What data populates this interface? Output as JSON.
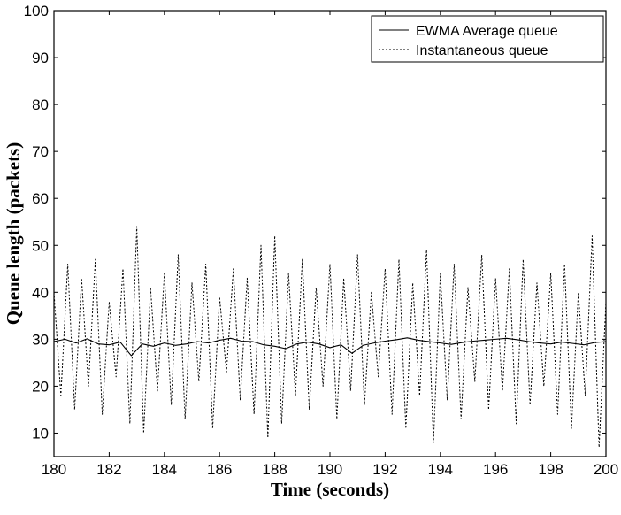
{
  "chart_data": {
    "type": "line",
    "title": "",
    "xlabel": "Time (seconds)",
    "ylabel": "Queue length (packets)",
    "xlim": [
      180,
      200
    ],
    "ylim": [
      5,
      100
    ],
    "xticks": [
      180,
      182,
      184,
      186,
      188,
      190,
      192,
      194,
      196,
      198,
      200
    ],
    "xtick_labels": [
      "180",
      "182",
      "184",
      "186",
      "188",
      "190",
      "192",
      "194",
      "196",
      "198",
      "200"
    ],
    "yticks": [
      10,
      20,
      30,
      40,
      50,
      60,
      70,
      80,
      90,
      100
    ],
    "ytick_labels": [
      "10",
      "20",
      "30",
      "40",
      "50",
      "60",
      "70",
      "80",
      "90",
      "100"
    ],
    "grid": false,
    "legend_position": "top-right",
    "series": [
      {
        "name": "EWMA Average queue",
        "style": "solid",
        "color": "#000000",
        "x": [
          180.0,
          180.4,
          180.8,
          181.2,
          181.6,
          182.0,
          182.4,
          182.8,
          183.2,
          183.6,
          184.0,
          184.4,
          184.8,
          185.2,
          185.6,
          186.0,
          186.4,
          186.8,
          187.2,
          187.6,
          188.0,
          188.4,
          188.8,
          189.2,
          189.6,
          190.0,
          190.4,
          190.8,
          191.2,
          191.6,
          192.0,
          192.4,
          192.8,
          193.2,
          193.6,
          194.0,
          194.4,
          194.8,
          195.2,
          195.6,
          196.0,
          196.4,
          196.8,
          197.2,
          197.6,
          198.0,
          198.4,
          198.8,
          199.2,
          199.6,
          200.0
        ],
        "y": [
          29.5,
          30.0,
          29.2,
          30.1,
          29.0,
          28.8,
          29.4,
          26.5,
          29.0,
          28.5,
          29.2,
          28.7,
          29.0,
          29.5,
          29.2,
          29.8,
          30.2,
          29.6,
          29.5,
          28.8,
          28.5,
          28.0,
          29.0,
          29.4,
          29.0,
          28.2,
          28.8,
          27.0,
          28.7,
          29.2,
          29.6,
          29.9,
          30.3,
          29.8,
          29.5,
          29.2,
          28.9,
          29.3,
          29.6,
          29.8,
          30.0,
          30.2,
          29.9,
          29.5,
          29.2,
          29.0,
          29.4,
          29.1,
          28.8,
          29.3,
          29.5
        ]
      },
      {
        "name": "Instantaneous queue",
        "style": "dotted",
        "color": "#000000",
        "x": [
          180.0,
          180.25,
          180.5,
          180.75,
          181.0,
          181.25,
          181.5,
          181.75,
          182.0,
          182.25,
          182.5,
          182.75,
          183.0,
          183.25,
          183.5,
          183.75,
          184.0,
          184.25,
          184.5,
          184.75,
          185.0,
          185.25,
          185.5,
          185.75,
          186.0,
          186.25,
          186.5,
          186.75,
          187.0,
          187.25,
          187.5,
          187.75,
          188.0,
          188.25,
          188.5,
          188.75,
          189.0,
          189.25,
          189.5,
          189.75,
          190.0,
          190.25,
          190.5,
          190.75,
          191.0,
          191.25,
          191.5,
          191.75,
          192.0,
          192.25,
          192.5,
          192.75,
          193.0,
          193.25,
          193.5,
          193.75,
          194.0,
          194.25,
          194.5,
          194.75,
          195.0,
          195.25,
          195.5,
          195.75,
          196.0,
          196.25,
          196.5,
          196.75,
          197.0,
          197.25,
          197.5,
          197.75,
          198.0,
          198.25,
          198.5,
          198.75,
          199.0,
          199.25,
          199.5,
          199.75,
          200.0
        ],
        "y": [
          40,
          18,
          46,
          15,
          43,
          20,
          47,
          14,
          38,
          22,
          45,
          12,
          54,
          10,
          41,
          19,
          44,
          16,
          48,
          13,
          42,
          21,
          46,
          11,
          39,
          23,
          45,
          17,
          43,
          14,
          50,
          9,
          52,
          12,
          44,
          18,
          47,
          15,
          41,
          20,
          46,
          13,
          43,
          19,
          48,
          16,
          40,
          22,
          45,
          14,
          47,
          11,
          42,
          18,
          49,
          8,
          44,
          17,
          46,
          13,
          41,
          21,
          48,
          15,
          43,
          19,
          45,
          12,
          47,
          16,
          42,
          20,
          44,
          14,
          46,
          11,
          40,
          18,
          52,
          7,
          38
        ]
      }
    ]
  }
}
